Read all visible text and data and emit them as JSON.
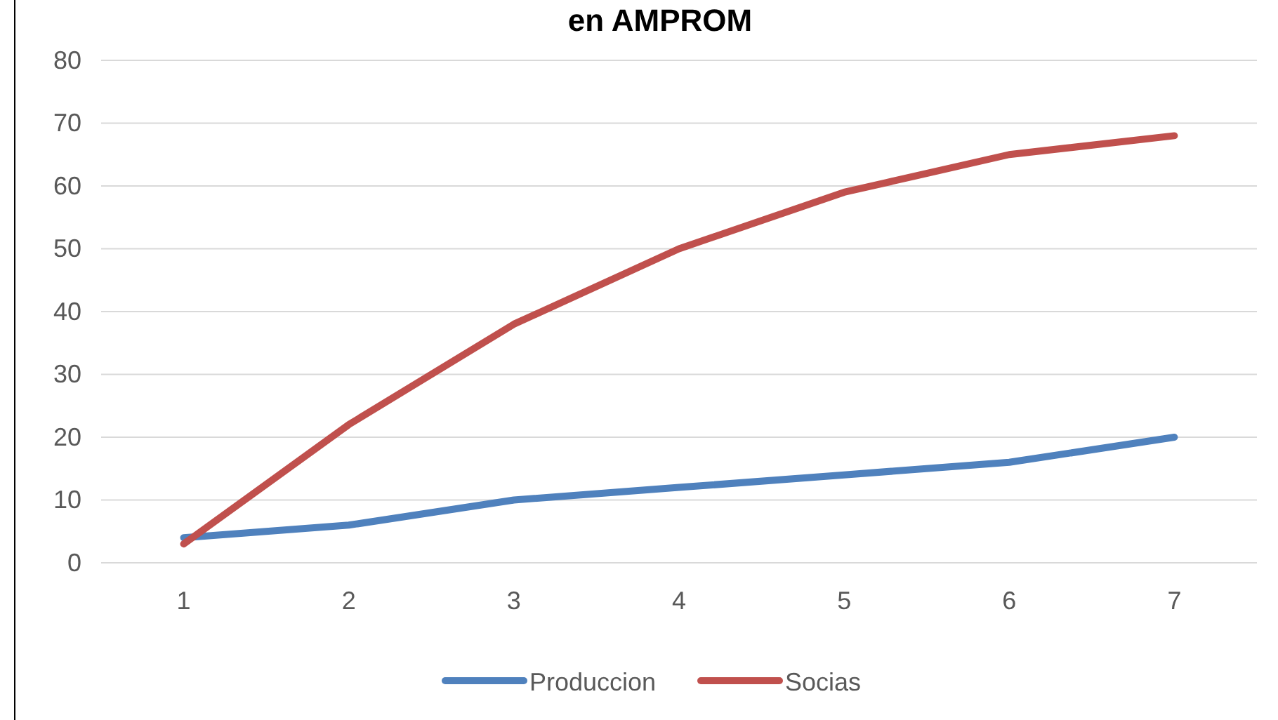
{
  "chart_data": {
    "type": "line",
    "title": "en AMPROM",
    "categories": [
      "1",
      "2",
      "3",
      "4",
      "5",
      "6",
      "7"
    ],
    "series": [
      {
        "name": "Produccion",
        "color": "#4f81bd",
        "values": [
          4,
          6,
          10,
          12,
          14,
          16,
          20
        ]
      },
      {
        "name": "Socias",
        "color": "#c0504d",
        "values": [
          3,
          22,
          38,
          50,
          59,
          65,
          68
        ]
      }
    ],
    "ylim": [
      0,
      80
    ],
    "yticks": [
      0,
      10,
      20,
      30,
      40,
      50,
      60,
      70,
      80
    ],
    "grid": "y",
    "legend": "bottom",
    "marker": "none",
    "line_style": "solid"
  }
}
